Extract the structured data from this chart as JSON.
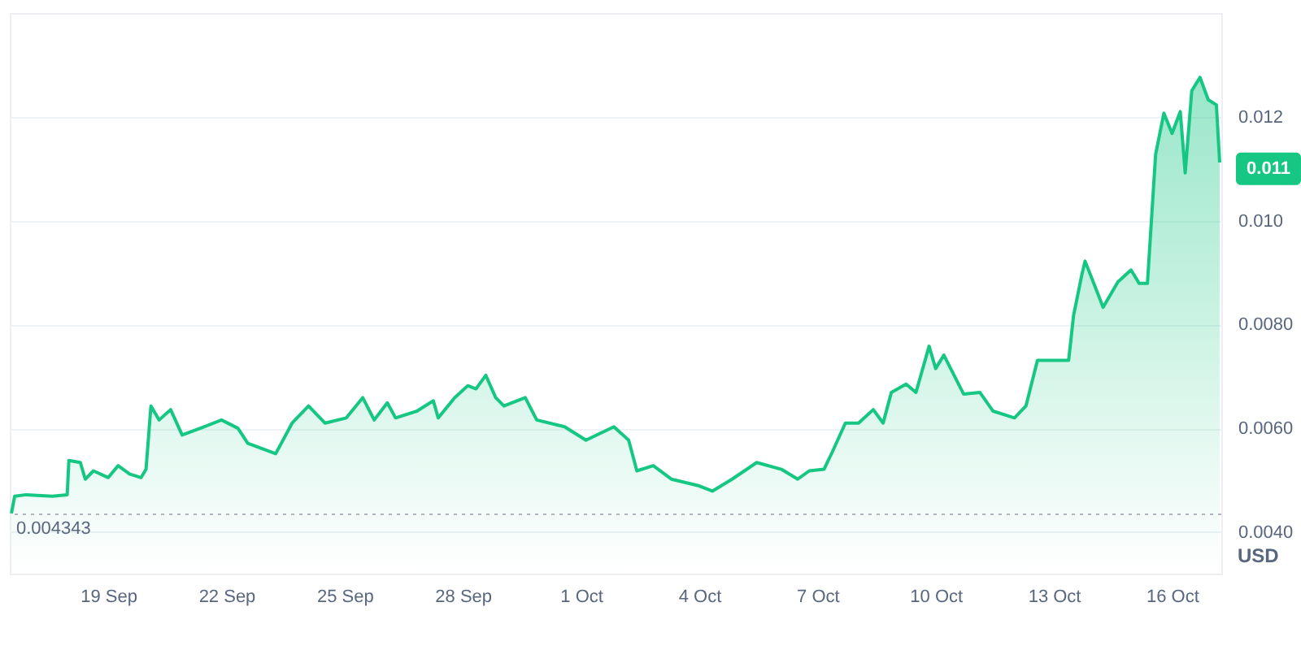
{
  "chart_data": {
    "type": "area",
    "ylabel": "USD",
    "color": "#16c784",
    "x": [
      "--09-16T13:00",
      "--09-16T15:00",
      "--09-16T22:00",
      "--09-17T14:00",
      "--09-17T23:00",
      "--09-18T00:00",
      "--09-18T07:00",
      "--09-18T10:00",
      "--09-18T15:00",
      "--09-19T00:00",
      "--09-19T06:00",
      "--09-19T13:00",
      "--09-19T20:00",
      "--09-19T23:00",
      "--09-20T02:00",
      "--09-20T07:00",
      "--09-20T14:00",
      "--09-20T21:00",
      "--09-21T08:00",
      "--09-21T21:00",
      "--09-22T07:00",
      "--09-22T13:00",
      "--09-23T06:00",
      "--09-23T16:00",
      "--09-24T02:00",
      "--09-24T12:00",
      "--09-25T01:00",
      "--09-25T11:00",
      "--09-25T18:00",
      "--09-26T02:00",
      "--09-26T07:00",
      "--09-26T20:00",
      "--09-27T06:00",
      "--09-27T09:00",
      "--09-27T19:00",
      "--09-28T03:00",
      "--09-28T08:00",
      "--09-28T14:00",
      "--09-28T20:00",
      "--09-29T01:00",
      "--09-29T14:00",
      "--09-29T21:00",
      "--09-30T14:00",
      "--10-01T03:00",
      "--10-01T20:00",
      "--10-02T05:00",
      "--10-02T10:00",
      "--10-02T20:00",
      "--10-03T07:00",
      "--10-04T00:00",
      "--10-04T08:00",
      "--10-04T20:00",
      "--10-05T11:00",
      "--10-06T02:00",
      "--10-06T12:00",
      "--10-06T19:00",
      "--10-07T04:00",
      "--10-07T09:00",
      "--10-07T17:00",
      "--10-08T01:00",
      "--10-08T10:00",
      "--10-08T16:00",
      "--10-08T21:00",
      "--10-09T06:00",
      "--10-09T12:00",
      "--10-09T20:00",
      "--10-10T00:00",
      "--10-10T05:00",
      "--10-10T17:00",
      "--10-11T03:00",
      "--10-11T11:00",
      "--10-12T00:00",
      "--10-12T07:00",
      "--10-12T14:00",
      "--10-12T23:00",
      "--10-13T09:00",
      "--10-13T12:00",
      "--10-13T17:00",
      "--10-13T19:00",
      "--10-14T00:00",
      "--10-14T06:00",
      "--10-14T15:00",
      "--10-14T23:00",
      "--10-15T04:00",
      "--10-15T09:00",
      "--10-15T14:00",
      "--10-15T19:00",
      "--10-16T00:00",
      "--10-16T05:00",
      "--10-16T08:00",
      "--10-16T12:00",
      "--10-16T17:00",
      "--10-16T22:00",
      "--10-17T03:00",
      "--10-17T05:00"
    ],
    "values": [
      0.00436,
      0.00469,
      0.00472,
      0.00469,
      0.00472,
      0.00538,
      0.00534,
      0.00502,
      0.00518,
      0.00505,
      0.00528,
      0.00512,
      0.00505,
      0.00521,
      0.00643,
      0.00616,
      0.00636,
      0.00587,
      0.006,
      0.00616,
      0.006,
      0.00571,
      0.00551,
      0.0061,
      0.00643,
      0.0061,
      0.0062,
      0.00659,
      0.00616,
      0.00649,
      0.0062,
      0.00633,
      0.00653,
      0.0062,
      0.00659,
      0.00682,
      0.00676,
      0.00702,
      0.00659,
      0.00643,
      0.00659,
      0.00616,
      0.00603,
      0.00577,
      0.00603,
      0.00577,
      0.00518,
      0.00528,
      0.00502,
      0.00489,
      0.00479,
      0.00502,
      0.00534,
      0.00521,
      0.00502,
      0.00518,
      0.00521,
      0.00554,
      0.0061,
      0.0061,
      0.00636,
      0.0061,
      0.00669,
      0.00685,
      0.00669,
      0.00758,
      0.00715,
      0.00741,
      0.00666,
      0.00669,
      0.00633,
      0.0062,
      0.00643,
      0.00731,
      0.00731,
      0.00731,
      0.00817,
      0.00895,
      0.00922,
      0.00882,
      0.00833,
      0.00882,
      0.00905,
      0.00879,
      0.00879,
      0.01128,
      0.01207,
      0.01168,
      0.0121,
      0.01092,
      0.0125,
      0.01276,
      0.01233,
      0.01223,
      0.01112
    ],
    "xlim": [
      "--09-16T12:00",
      "--10-17T06:00"
    ],
    "xticks": [
      {
        "value": "--09-19",
        "label": "19 Sep"
      },
      {
        "value": "--09-22",
        "label": "22 Sep"
      },
      {
        "value": "--09-25",
        "label": "25 Sep"
      },
      {
        "value": "--09-28",
        "label": "28 Sep"
      },
      {
        "value": "--10-01",
        "label": "1 Oct"
      },
      {
        "value": "--10-04",
        "label": "4 Oct"
      },
      {
        "value": "--10-07",
        "label": "7 Oct"
      },
      {
        "value": "--10-10",
        "label": "10 Oct"
      },
      {
        "value": "--10-13",
        "label": "13 Oct"
      },
      {
        "value": "--10-16",
        "label": "16 Oct"
      }
    ],
    "ylim": [
      0.0032,
      0.014
    ],
    "yticks": [
      {
        "value": 0.004,
        "label": "0.0040"
      },
      {
        "value": 0.006,
        "label": "0.0060"
      },
      {
        "value": 0.008,
        "label": "0.0080"
      },
      {
        "value": 0.01,
        "label": "0.010"
      },
      {
        "value": 0.012,
        "label": "0.012"
      }
    ],
    "grid": "y",
    "ref_lines": [
      {
        "axis": "y",
        "value": 0.004343,
        "label": "0.004343",
        "line_style": "dotted",
        "color": "#b0b4bc"
      }
    ],
    "annotations": [
      {
        "text": "0.011",
        "x": "--10-17T05:00",
        "y": 0.011
      }
    ]
  }
}
